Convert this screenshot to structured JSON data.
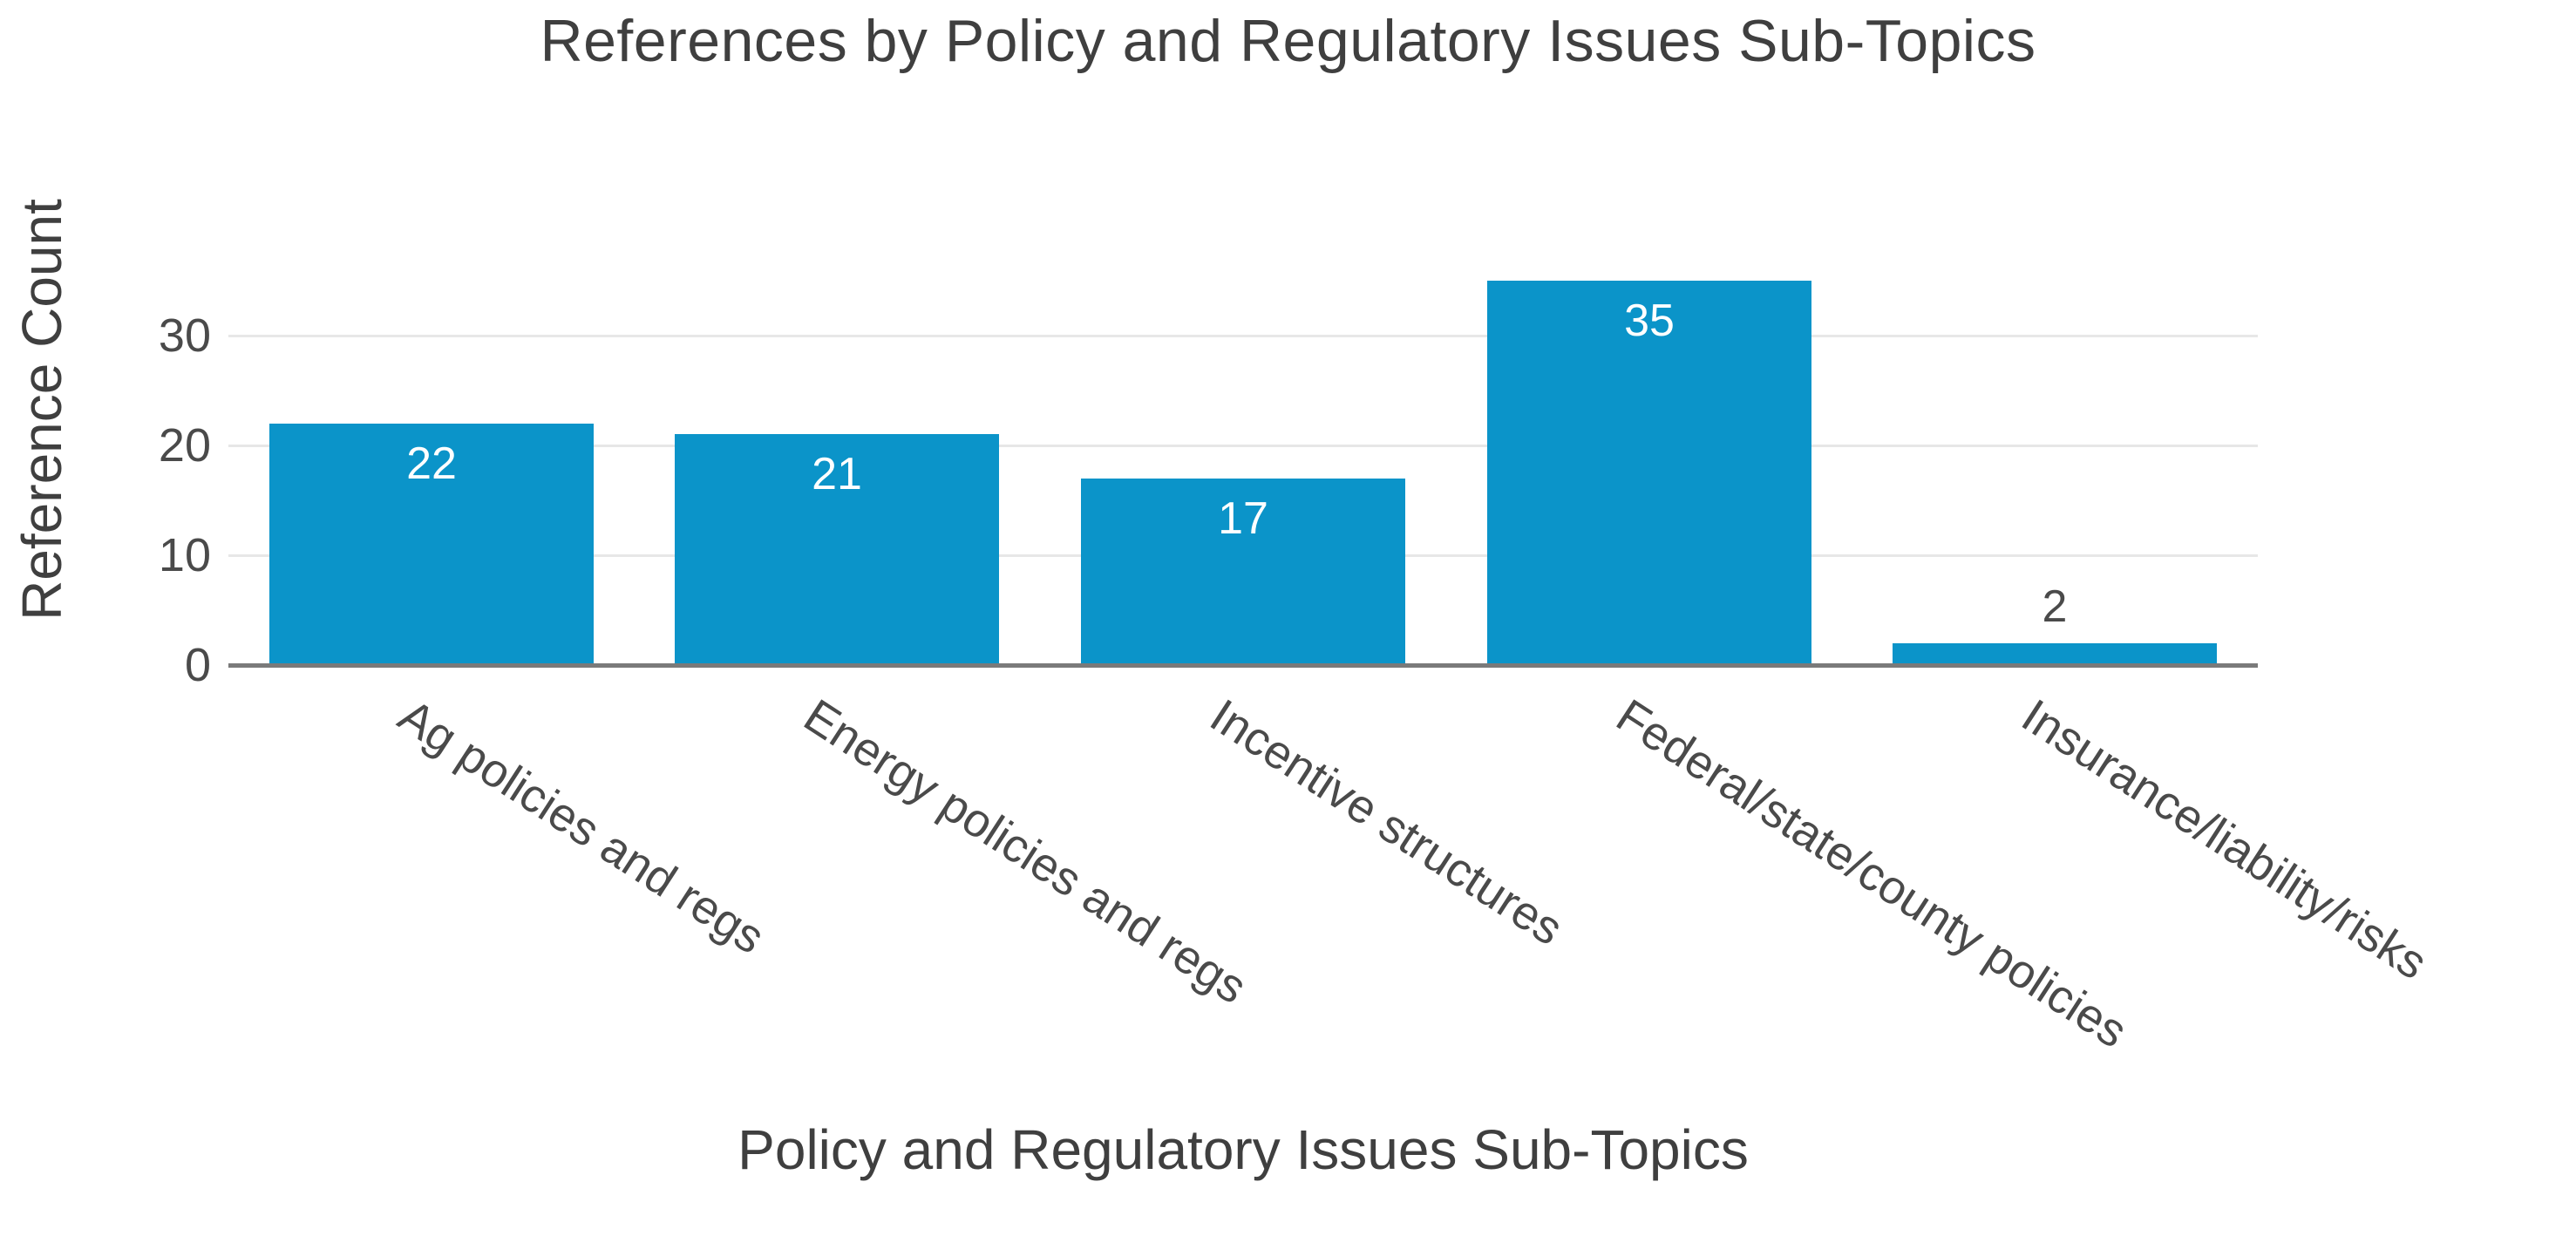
{
  "chart_data": {
    "type": "bar",
    "title": "References by Policy and Regulatory Issues Sub-Topics",
    "xlabel": "Policy and Regulatory Issues Sub-Topics",
    "ylabel": "Reference Count",
    "categories": [
      "Ag policies and regs",
      "Energy policies and regs",
      "Incentive structures",
      "Federal/state/county policies",
      "Insurance/liability/risks"
    ],
    "values": [
      22,
      21,
      17,
      35,
      2
    ],
    "bar_value_labels": [
      "22",
      "21",
      "17",
      "35",
      "2"
    ],
    "yticks": [
      0,
      10,
      20,
      30
    ],
    "ylim": [
      0,
      37
    ],
    "grid": "horizontal-only",
    "legend": "none",
    "bar_color": "#0b94c9",
    "inside_label_color": "#ffffff",
    "outside_label_color": "#4a4a4a",
    "gridline_color": "#e7e7e7",
    "axis_line_color": "#7a7a7a",
    "title_color": "#3f3f3f",
    "tick_label_color": "#4a4a4a",
    "x_tick_rotation_deg": 33,
    "inside_label_min_value": 5
  }
}
